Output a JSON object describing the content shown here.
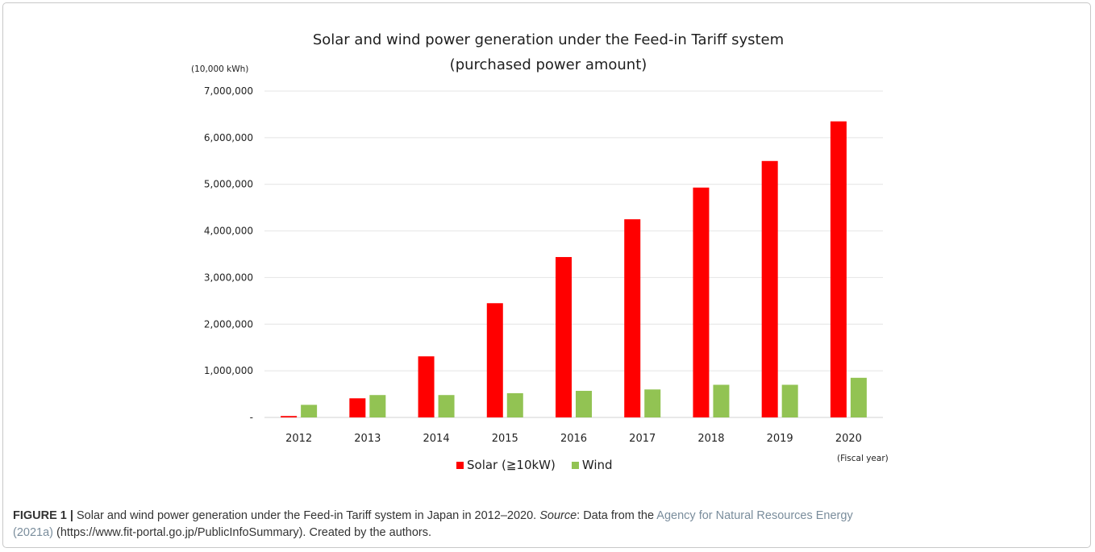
{
  "chart_data": {
    "type": "bar",
    "title": "Solar and wind power generation under the Feed-in Tariff system",
    "subtitle": "(purchased power amount)",
    "ylabel": "(10,000 kWh)",
    "xlabel": "(Fiscal year)",
    "categories": [
      "2012",
      "2013",
      "2014",
      "2015",
      "2016",
      "2017",
      "2018",
      "2019",
      "2020"
    ],
    "series": [
      {
        "name": "Solar (≧10kW)",
        "color": "#ff0000",
        "values": [
          30000,
          410000,
          1310000,
          2450000,
          3440000,
          4250000,
          4930000,
          5500000,
          6350000
        ]
      },
      {
        "name": "Wind",
        "color": "#92c353",
        "values": [
          270000,
          480000,
          480000,
          520000,
          570000,
          600000,
          700000,
          700000,
          850000
        ]
      }
    ],
    "ylim": [
      0,
      7000000
    ],
    "yticks": [
      0,
      1000000,
      2000000,
      3000000,
      4000000,
      5000000,
      6000000,
      7000000
    ],
    "ytick_labels": [
      "-",
      "1,000,000",
      "2,000,000",
      "3,000,000",
      "4,000,000",
      "5,000,000",
      "6,000,000",
      "7,000,000"
    ],
    "grid": true,
    "legend": "bottom"
  },
  "caption": {
    "label": "FIGURE 1 |",
    "text1": " Solar and wind power generation under the Feed-in Tariff system in Japan in 2012–2020. ",
    "source_word": "Source",
    "text2": ": Data from the ",
    "link": "Agency for Natural Resources Energy",
    "link2": "(2021a)",
    "text3": " (https://www.fit-portal.go.jp/PublicInfoSummary). Created by the authors."
  }
}
